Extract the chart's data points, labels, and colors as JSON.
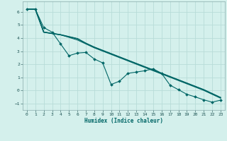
{
  "xlabel": "Humidex (Indice chaleur)",
  "bg_color": "#d4f0ec",
  "grid_color": "#b8dcd8",
  "line_color": "#006666",
  "marker_color": "#006666",
  "xlim": [
    -0.5,
    23.5
  ],
  "ylim": [
    -1.5,
    6.8
  ],
  "yticks": [
    -1,
    0,
    1,
    2,
    3,
    4,
    5,
    6
  ],
  "xticks": [
    0,
    1,
    2,
    3,
    4,
    5,
    6,
    7,
    8,
    9,
    10,
    11,
    12,
    13,
    14,
    15,
    16,
    17,
    18,
    19,
    20,
    21,
    22,
    23
  ],
  "series1_x": [
    0,
    1,
    2,
    3,
    4,
    5,
    6,
    7,
    8,
    9,
    10,
    11,
    12,
    13,
    14,
    15,
    16,
    17,
    18,
    19,
    20,
    21,
    22,
    23
  ],
  "series1_y": [
    6.2,
    6.2,
    4.8,
    4.45,
    3.55,
    2.65,
    2.85,
    2.9,
    2.4,
    2.1,
    0.45,
    0.7,
    1.3,
    1.4,
    1.5,
    1.65,
    1.3,
    0.4,
    0.05,
    -0.3,
    -0.5,
    -0.72,
    -0.9,
    -0.75
  ],
  "series2_x": [
    0,
    1,
    2,
    3,
    4,
    5,
    6,
    7,
    8,
    9,
    10,
    11,
    12,
    13,
    14,
    15,
    16,
    17,
    18,
    19,
    20,
    21,
    22,
    23
  ],
  "series2_y": [
    6.2,
    6.2,
    4.45,
    4.35,
    4.25,
    4.1,
    3.95,
    3.6,
    3.3,
    3.05,
    2.8,
    2.55,
    2.3,
    2.05,
    1.8,
    1.55,
    1.3,
    1.05,
    0.8,
    0.55,
    0.3,
    0.05,
    -0.25,
    -0.55
  ],
  "series3_x": [
    0,
    1,
    2,
    3,
    4,
    5,
    6,
    7,
    8,
    9,
    10,
    11,
    12,
    13,
    14,
    15,
    16,
    17,
    18,
    19,
    20,
    21,
    22,
    23
  ],
  "series3_y": [
    6.2,
    6.2,
    4.45,
    4.35,
    4.25,
    4.1,
    3.95,
    3.6,
    3.3,
    3.05,
    2.8,
    2.55,
    2.3,
    2.05,
    1.8,
    1.55,
    1.3,
    1.05,
    0.8,
    0.55,
    0.3,
    0.05,
    -0.25,
    -0.55
  ],
  "series4_x": [
    0,
    1,
    2,
    3,
    4,
    5,
    6,
    7,
    8,
    9,
    10,
    11,
    12,
    13,
    14,
    15,
    16,
    17,
    18,
    19,
    20,
    21,
    22,
    23
  ],
  "series4_y": [
    6.2,
    6.2,
    4.45,
    4.35,
    4.25,
    4.05,
    3.85,
    3.55,
    3.25,
    3.0,
    2.75,
    2.5,
    2.25,
    2.0,
    1.75,
    1.5,
    1.25,
    1.0,
    0.75,
    0.5,
    0.25,
    0.0,
    -0.3,
    -0.6
  ]
}
